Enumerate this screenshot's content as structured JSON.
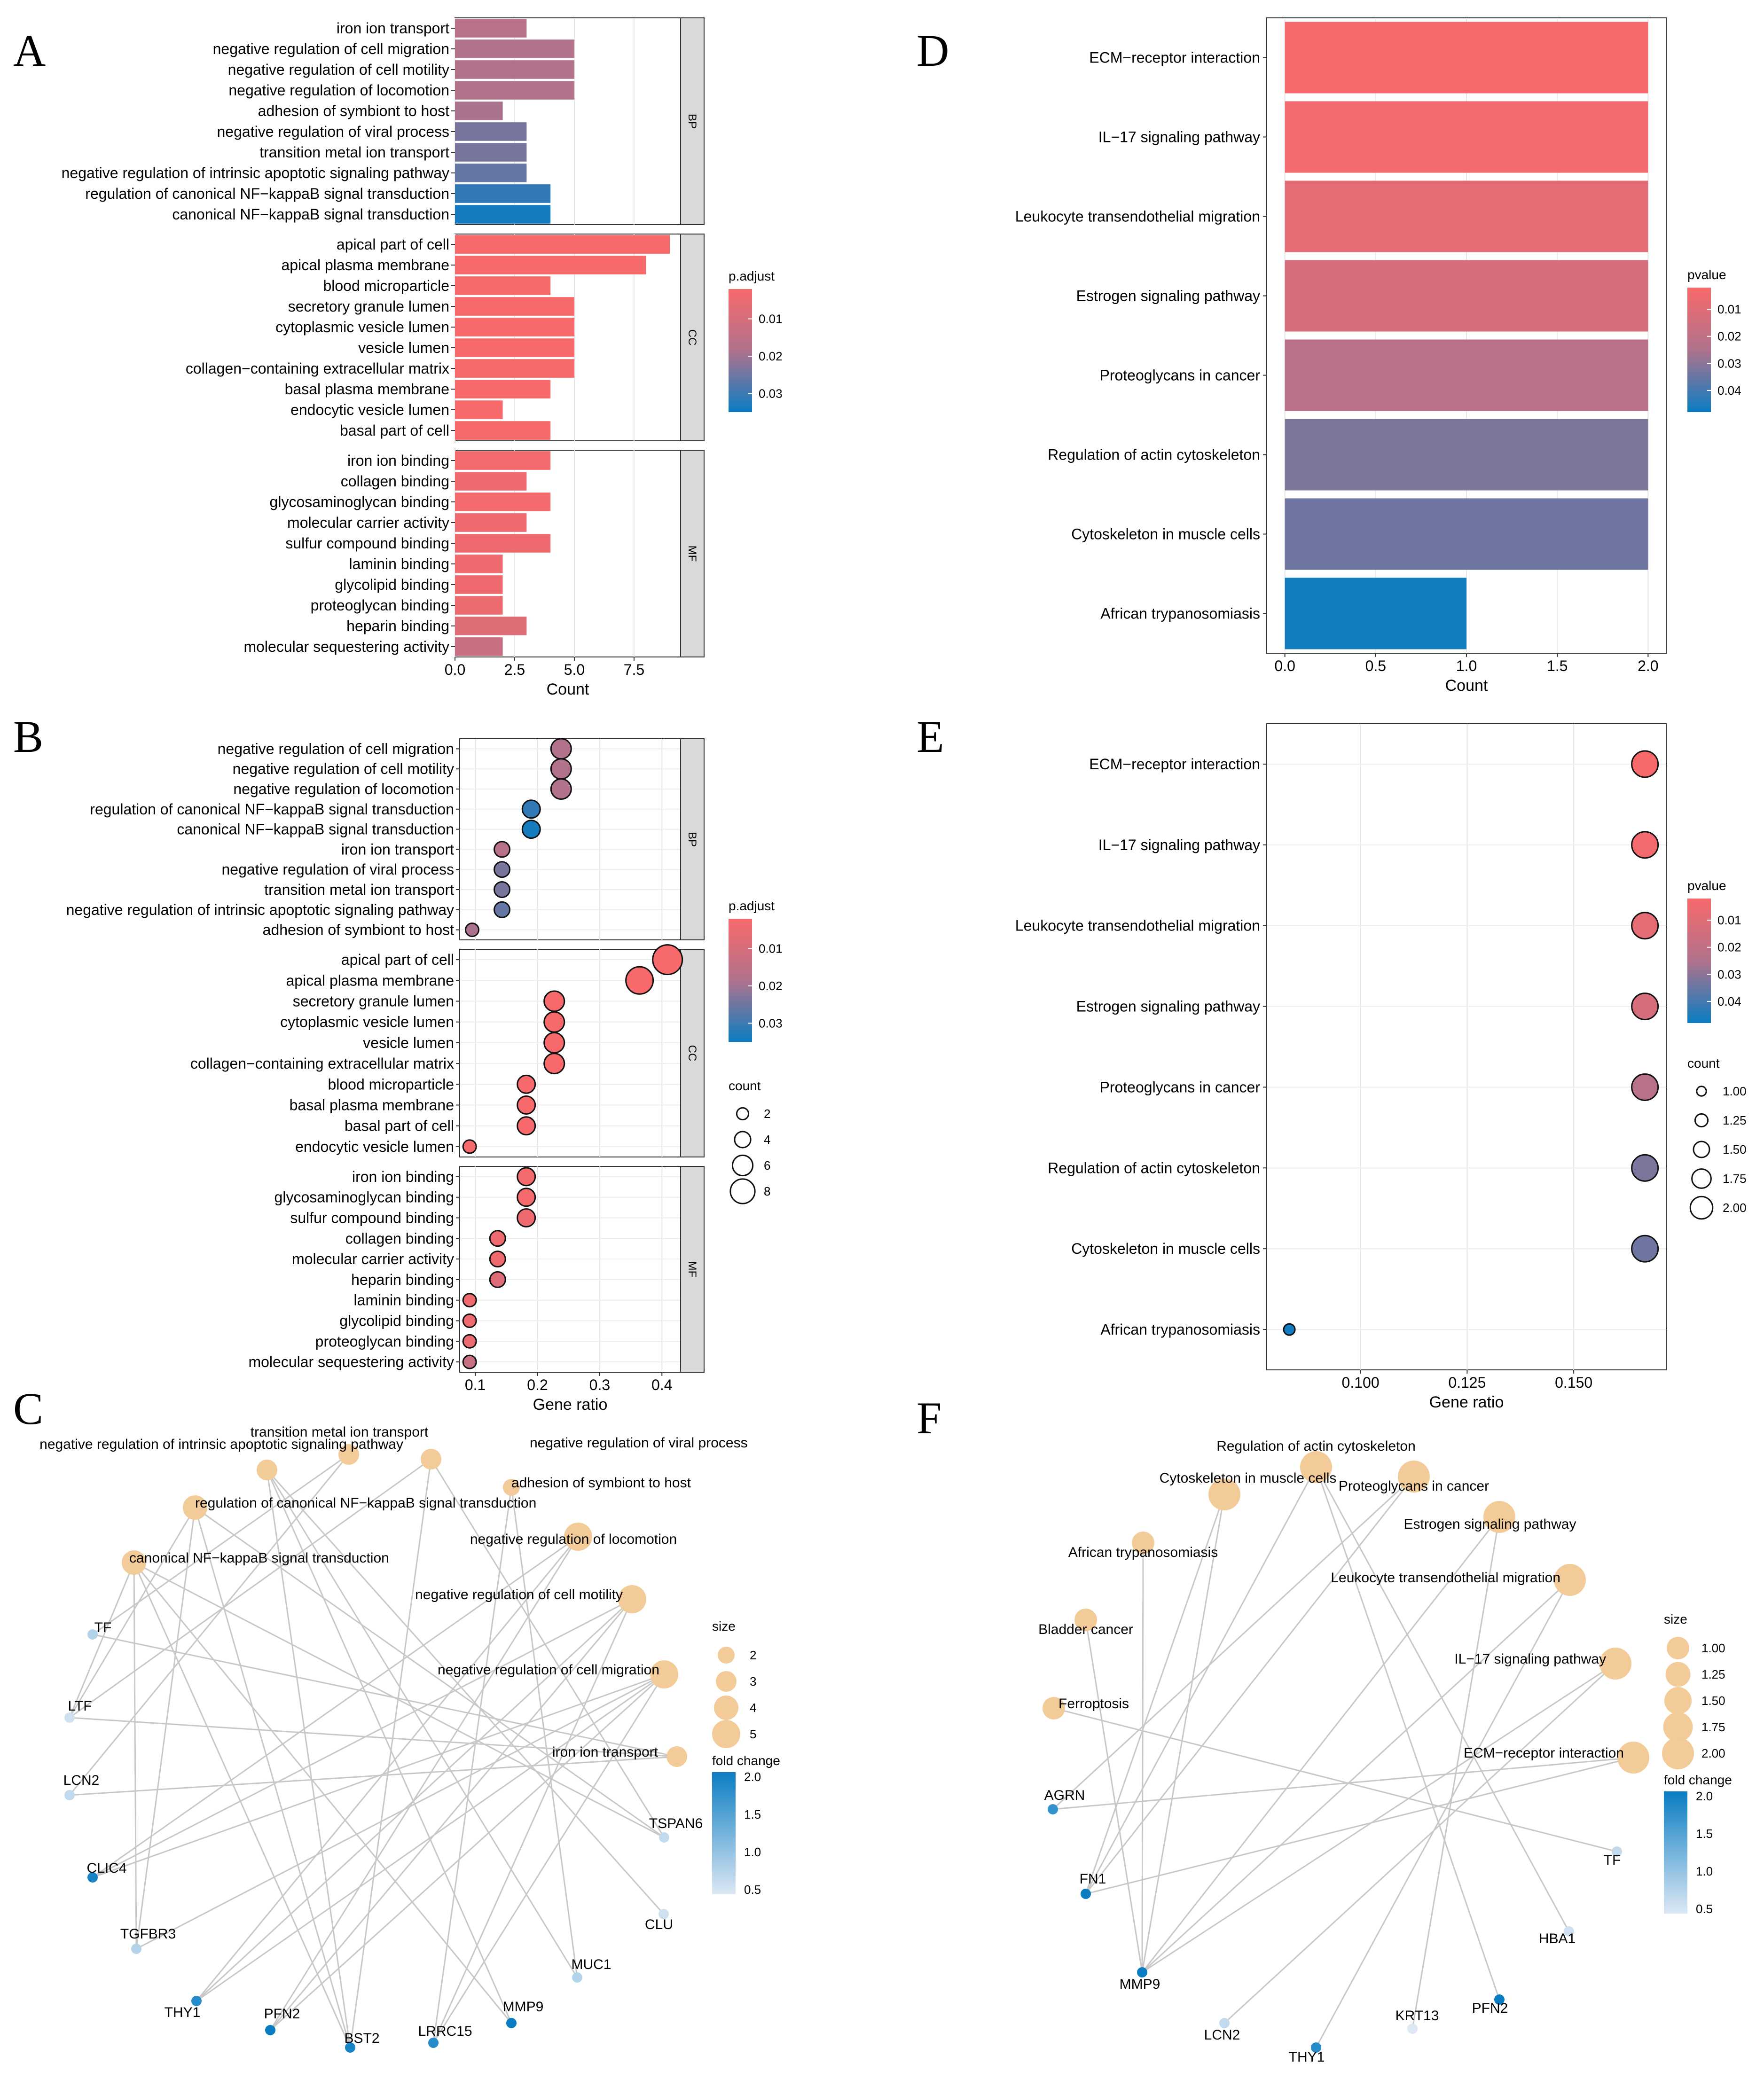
{
  "panels": {
    "A": "A",
    "B": "B",
    "C": "C",
    "D": "D",
    "E": "E",
    "F": "F"
  },
  "colors": {
    "red": "#F8696B",
    "blue": "#0A7DC2",
    "cream": "#F2CB98",
    "edge": "#C8C8C8",
    "strip": "#D9D9D9"
  },
  "chart_data": [
    {
      "panel": "A",
      "type": "bar",
      "orientation": "horizontal",
      "xlabel": "Count",
      "xlim": [
        0,
        9.45
      ],
      "xticks": [
        0.0,
        2.5,
        5.0,
        7.5
      ],
      "xtick_labels": [
        "0.0",
        "2.5",
        "5.0",
        "7.5"
      ],
      "legend": {
        "title": "p.adjust",
        "ticks": [
          "0.01",
          "0.02",
          "0.03"
        ],
        "placement": "right"
      },
      "facets": [
        {
          "name": "BP",
          "categories": [
            "iron ion transport",
            "negative regulation of cell migration",
            "negative regulation of cell motility",
            "negative regulation of locomotion",
            "adhesion of symbiont to host",
            "negative regulation of viral process",
            "transition metal ion transport",
            "negative regulation of intrinsic apoptotic signaling pathway",
            "regulation of canonical NF−kappaB signal transduction",
            "canonical NF−kappaB signal transduction"
          ],
          "values": [
            3,
            5,
            5,
            5,
            2,
            3,
            3,
            3,
            4,
            4
          ],
          "p_adjust": [
            0.017,
            0.018,
            0.018,
            0.018,
            0.019,
            0.024,
            0.024,
            0.026,
            0.031,
            0.034
          ]
        },
        {
          "name": "CC",
          "categories": [
            "apical part of cell",
            "apical plasma membrane",
            "blood microparticle",
            "secretory granule lumen",
            "cytoplasmic vesicle lumen",
            "vesicle lumen",
            "collagen−containing extracellular matrix",
            "basal plasma membrane",
            "endocytic vesicle lumen",
            "basal part of cell"
          ],
          "values": [
            9,
            8,
            4,
            5,
            5,
            5,
            5,
            4,
            2,
            4
          ],
          "p_adjust": [
            0.001,
            0.002,
            0.002,
            0.002,
            0.002,
            0.002,
            0.002,
            0.002,
            0.002,
            0.002
          ]
        },
        {
          "name": "MF",
          "categories": [
            "iron ion binding",
            "collagen binding",
            "glycosaminoglycan binding",
            "molecular carrier activity",
            "sulfur compound binding",
            "laminin binding",
            "glycolipid binding",
            "proteoglycan binding",
            "heparin binding",
            "molecular sequestering activity"
          ],
          "values": [
            4,
            3,
            4,
            3,
            4,
            2,
            2,
            2,
            3,
            2
          ],
          "p_adjust": [
            0.003,
            0.004,
            0.003,
            0.004,
            0.004,
            0.004,
            0.004,
            0.005,
            0.008,
            0.013
          ]
        }
      ]
    },
    {
      "panel": "B",
      "type": "scatter",
      "xlabel": "Gene ratio",
      "xlim": [
        0.075,
        0.43
      ],
      "xticks": [
        0.1,
        0.2,
        0.3,
        0.4
      ],
      "xtick_labels": [
        "0.1",
        "0.2",
        "0.3",
        "0.4"
      ],
      "legend": {
        "title": "p.adjust",
        "ticks": [
          "0.01",
          "0.02",
          "0.03"
        ],
        "size_title": "count",
        "size_values": [
          2,
          4,
          6,
          8
        ],
        "placement": "right"
      },
      "facets": [
        {
          "name": "BP",
          "categories": [
            "negative regulation of cell migration",
            "negative regulation of cell motility",
            "negative regulation of locomotion",
            "regulation of canonical NF−kappaB signal transduction",
            "canonical NF−kappaB signal transduction",
            "iron ion transport",
            "negative regulation of viral process",
            "transition metal ion transport",
            "negative regulation of intrinsic apoptotic signaling pathway",
            "adhesion of symbiont to host"
          ],
          "x": [
            0.238,
            0.238,
            0.238,
            0.19,
            0.19,
            0.143,
            0.143,
            0.143,
            0.143,
            0.095
          ],
          "count": [
            5,
            5,
            5,
            4,
            4,
            3,
            3,
            3,
            3,
            2
          ],
          "p_adjust": [
            0.018,
            0.018,
            0.018,
            0.031,
            0.034,
            0.017,
            0.024,
            0.024,
            0.026,
            0.019
          ]
        },
        {
          "name": "CC",
          "categories": [
            "apical part of cell",
            "apical plasma membrane",
            "secretory granule lumen",
            "cytoplasmic vesicle lumen",
            "vesicle lumen",
            "collagen−containing extracellular matrix",
            "blood microparticle",
            "basal plasma membrane",
            "basal part of cell",
            "endocytic vesicle lumen"
          ],
          "x": [
            0.409,
            0.364,
            0.227,
            0.227,
            0.227,
            0.227,
            0.182,
            0.182,
            0.182,
            0.091
          ],
          "count": [
            9,
            8,
            5,
            5,
            5,
            5,
            4,
            4,
            4,
            2
          ],
          "p_adjust": [
            0.001,
            0.002,
            0.002,
            0.002,
            0.002,
            0.002,
            0.002,
            0.002,
            0.002,
            0.002
          ]
        },
        {
          "name": "MF",
          "categories": [
            "iron ion binding",
            "glycosaminoglycan binding",
            "sulfur compound binding",
            "collagen binding",
            "molecular carrier activity",
            "heparin binding",
            "laminin binding",
            "glycolipid binding",
            "proteoglycan binding",
            "molecular sequestering activity"
          ],
          "x": [
            0.182,
            0.182,
            0.182,
            0.136,
            0.136,
            0.136,
            0.091,
            0.091,
            0.091,
            0.091
          ],
          "count": [
            4,
            4,
            4,
            3,
            3,
            3,
            2,
            2,
            2,
            2
          ],
          "p_adjust": [
            0.003,
            0.003,
            0.004,
            0.004,
            0.004,
            0.008,
            0.004,
            0.004,
            0.005,
            0.013
          ]
        }
      ]
    },
    {
      "panel": "D",
      "type": "bar",
      "orientation": "horizontal",
      "xlabel": "Count",
      "xlim": [
        -0.1,
        2.1
      ],
      "xticks": [
        0.0,
        0.5,
        1.0,
        1.5,
        2.0
      ],
      "xtick_labels": [
        "0.0",
        "0.5",
        "1.0",
        "1.5",
        "2.0"
      ],
      "legend": {
        "title": "pvalue",
        "ticks": [
          "0.01",
          "0.02",
          "0.03",
          "0.04"
        ],
        "placement": "right"
      },
      "categories": [
        "ECM−receptor interaction",
        "IL−17 signaling pathway",
        "Leukocyte transendothelial migration",
        "Estrogen signaling pathway",
        "Proteoglycans in cancer",
        "Regulation of actin cytoskeleton",
        "Cytoskeleton in muscle cells",
        "African trypanosomiasis"
      ],
      "values": [
        2,
        2,
        2,
        2,
        2,
        2,
        2,
        1
      ],
      "pvalue": [
        0.002,
        0.004,
        0.008,
        0.013,
        0.022,
        0.032,
        0.034,
        0.047
      ]
    },
    {
      "panel": "E",
      "type": "scatter",
      "xlabel": "Gene ratio",
      "xlim": [
        0.078,
        0.1717
      ],
      "xticks": [
        0.1,
        0.125,
        0.15
      ],
      "xtick_labels": [
        "0.100",
        "0.125",
        "0.150"
      ],
      "legend": {
        "title": "pvalue",
        "ticks": [
          "0.01",
          "0.02",
          "0.03",
          "0.04"
        ],
        "size_title": "count",
        "size_values": [
          "1.00",
          "1.25",
          "1.50",
          "1.75",
          "2.00"
        ],
        "placement": "right"
      },
      "categories": [
        "ECM−receptor interaction",
        "IL−17 signaling pathway",
        "Leukocyte transendothelial migration",
        "Estrogen signaling pathway",
        "Proteoglycans in cancer",
        "Regulation of actin cytoskeleton",
        "Cytoskeleton in muscle cells",
        "African trypanosomiasis"
      ],
      "x": [
        0.1667,
        0.1667,
        0.1667,
        0.1667,
        0.1667,
        0.1667,
        0.1667,
        0.0833
      ],
      "count": [
        2,
        2,
        2,
        2,
        2,
        2,
        2,
        1
      ],
      "pvalue": [
        0.002,
        0.004,
        0.008,
        0.013,
        0.022,
        0.032,
        0.034,
        0.047
      ]
    },
    {
      "panel": "C",
      "type": "network",
      "legend": {
        "size_title": "size",
        "size_values": [
          "2",
          "3",
          "4",
          "5"
        ],
        "color_title": "fold change",
        "color_ticks": [
          "2.0",
          "1.5",
          "1.0",
          "0.5"
        ],
        "placement": "right"
      },
      "terms": [
        {
          "name": "transition metal ion transport",
          "size": 3
        },
        {
          "name": "negative regulation of intrinsic apoptotic signaling pathway",
          "size": 3
        },
        {
          "name": "negative regulation of viral process",
          "size": 3
        },
        {
          "name": "adhesion of symbiont to host",
          "size": 2
        },
        {
          "name": "regulation of canonical NF−kappaB signal transduction",
          "size": 4
        },
        {
          "name": "negative regulation of locomotion",
          "size": 5
        },
        {
          "name": "canonical NF−kappaB signal transduction",
          "size": 4
        },
        {
          "name": "negative regulation of cell motility",
          "size": 5
        },
        {
          "name": "negative regulation of cell migration",
          "size": 5
        },
        {
          "name": "iron ion transport",
          "size": 3
        }
      ],
      "genes": [
        {
          "name": "TF",
          "fold_change": 0.8
        },
        {
          "name": "LTF",
          "fold_change": 0.6
        },
        {
          "name": "LCN2",
          "fold_change": 0.7
        },
        {
          "name": "CLIC4",
          "fold_change": 1.9
        },
        {
          "name": "TGFBR3",
          "fold_change": 0.8
        },
        {
          "name": "THY1",
          "fold_change": 1.8
        },
        {
          "name": "PFN2",
          "fold_change": 2.0
        },
        {
          "name": "BST2",
          "fold_change": 1.9
        },
        {
          "name": "LRRC15",
          "fold_change": 1.8
        },
        {
          "name": "MMP9",
          "fold_change": 2.0
        },
        {
          "name": "MUC1",
          "fold_change": 0.8
        },
        {
          "name": "CLU",
          "fold_change": 0.6
        },
        {
          "name": "TSPAN6",
          "fold_change": 0.7
        }
      ],
      "edges": [
        [
          "TF",
          "iron ion transport"
        ],
        [
          "TF",
          "transition metal ion transport"
        ],
        [
          "LTF",
          "iron ion transport"
        ],
        [
          "LTF",
          "negative regulation of viral process"
        ],
        [
          "LTF",
          "canonical NF−kappaB signal transduction"
        ],
        [
          "LTF",
          "regulation of canonical NF−kappaB signal transduction"
        ],
        [
          "LCN2",
          "iron ion transport"
        ],
        [
          "LCN2",
          "transition metal ion transport"
        ],
        [
          "CLIC4",
          "negative regulation of cell migration"
        ],
        [
          "CLIC4",
          "negative regulation of cell motility"
        ],
        [
          "CLIC4",
          "negative regulation of locomotion"
        ],
        [
          "TGFBR3",
          "canonical NF−kappaB signal transduction"
        ],
        [
          "TGFBR3",
          "regulation of canonical NF−kappaB signal transduction"
        ],
        [
          "TGFBR3",
          "negative regulation of cell migration"
        ],
        [
          "THY1",
          "negative regulation of cell migration"
        ],
        [
          "THY1",
          "negative regulation of cell motility"
        ],
        [
          "THY1",
          "negative regulation of locomotion"
        ],
        [
          "PFN2",
          "negative regulation of cell migration"
        ],
        [
          "PFN2",
          "negative regulation of cell motility"
        ],
        [
          "PFN2",
          "negative regulation of locomotion"
        ],
        [
          "BST2",
          "negative regulation of viral process"
        ],
        [
          "BST2",
          "canonical NF−kappaB signal transduction"
        ],
        [
          "BST2",
          "regulation of canonical NF−kappaB signal transduction"
        ],
        [
          "BST2",
          "negative regulation of intrinsic apoptotic signaling pathway"
        ],
        [
          "LRRC15",
          "negative regulation of cell migration"
        ],
        [
          "LRRC15",
          "negative regulation of cell motility"
        ],
        [
          "LRRC15",
          "adhesion of symbiont to host"
        ],
        [
          "MMP9",
          "negative regulation of intrinsic apoptotic signaling pathway"
        ],
        [
          "MMP9",
          "canonical NF−kappaB signal transduction"
        ],
        [
          "MUC1",
          "negative regulation of intrinsic apoptotic signaling pathway"
        ],
        [
          "MUC1",
          "adhesion of symbiont to host"
        ],
        [
          "CLU",
          "negative regulation of intrinsic apoptotic signaling pathway"
        ],
        [
          "TSPAN6",
          "negative regulation of viral process"
        ],
        [
          "TSPAN6",
          "canonical NF−kappaB signal transduction"
        ],
        [
          "TSPAN6",
          "regulation of canonical NF−kappaB signal transduction"
        ]
      ]
    },
    {
      "panel": "F",
      "type": "network",
      "legend": {
        "size_title": "size",
        "size_values": [
          "1.00",
          "1.25",
          "1.50",
          "1.75",
          "2.00"
        ],
        "color_title": "fold change",
        "color_ticks": [
          "2.0",
          "1.5",
          "1.0",
          "0.5"
        ],
        "placement": "right"
      },
      "terms": [
        {
          "name": "Regulation of actin cytoskeleton",
          "size": 2
        },
        {
          "name": "Cytoskeleton in muscle cells",
          "size": 2
        },
        {
          "name": "Proteoglycans in cancer",
          "size": 2
        },
        {
          "name": "Estrogen signaling pathway",
          "size": 2
        },
        {
          "name": "African trypanosomiasis",
          "size": 1
        },
        {
          "name": "Leukocyte transendothelial migration",
          "size": 2
        },
        {
          "name": "Bladder cancer",
          "size": 1
        },
        {
          "name": "IL−17 signaling pathway",
          "size": 2
        },
        {
          "name": "Ferroptosis",
          "size": 1
        },
        {
          "name": "ECM−receptor interaction",
          "size": 2
        }
      ],
      "genes": [
        {
          "name": "AGRN",
          "fold_change": 1.7
        },
        {
          "name": "TF",
          "fold_change": 0.7
        },
        {
          "name": "FN1",
          "fold_change": 2.0
        },
        {
          "name": "HBA1",
          "fold_change": 0.6
        },
        {
          "name": "MMP9",
          "fold_change": 2.0
        },
        {
          "name": "PFN2",
          "fold_change": 2.0
        },
        {
          "name": "LCN2",
          "fold_change": 0.7
        },
        {
          "name": "KRT13",
          "fold_change": 0.5
        },
        {
          "name": "THY1",
          "fold_change": 1.8
        }
      ],
      "edges": [
        [
          "AGRN",
          "ECM−receptor interaction"
        ],
        [
          "AGRN",
          "Proteoglycans in cancer"
        ],
        [
          "FN1",
          "ECM−receptor interaction"
        ],
        [
          "FN1",
          "Regulation of actin cytoskeleton"
        ],
        [
          "FN1",
          "Proteoglycans in cancer"
        ],
        [
          "FN1",
          "Cytoskeleton in muscle cells"
        ],
        [
          "MMP9",
          "Leukocyte transendothelial migration"
        ],
        [
          "MMP9",
          "IL−17 signaling pathway"
        ],
        [
          "MMP9",
          "Estrogen signaling pathway"
        ],
        [
          "MMP9",
          "Bladder cancer"
        ],
        [
          "MMP9",
          "Cytoskeleton in muscle cells"
        ],
        [
          "MMP9",
          "African trypanosomiasis"
        ],
        [
          "PFN2",
          "Regulation of actin cytoskeleton"
        ],
        [
          "LCN2",
          "IL−17 signaling pathway"
        ],
        [
          "THY1",
          "Leukocyte transendothelial migration"
        ],
        [
          "KRT13",
          "Estrogen signaling pathway"
        ],
        [
          "HBA1",
          "Regulation of actin cytoskeleton"
        ],
        [
          "TF",
          "Ferroptosis"
        ]
      ]
    }
  ]
}
